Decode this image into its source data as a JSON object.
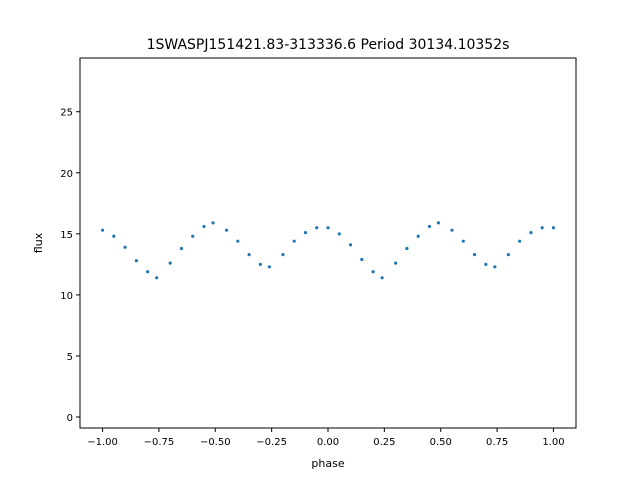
{
  "chart_data": {
    "type": "scatter",
    "title": "1SWASPJ151421.83-313336.6 Period 30134.10352s",
    "xlabel": "phase",
    "ylabel": "flux",
    "xlim": [
      -1.1,
      1.1
    ],
    "ylim": [
      -0.9,
      29.4
    ],
    "x_ticks": [
      -1.0,
      -0.75,
      -0.5,
      -0.25,
      0.0,
      0.25,
      0.5,
      0.75,
      1.0
    ],
    "x_tick_labels": [
      "−1.00",
      "−0.75",
      "−0.50",
      "−0.25",
      "0.00",
      "0.25",
      "0.50",
      "0.75",
      "1.00"
    ],
    "y_ticks": [
      0,
      5,
      10,
      15,
      20,
      25
    ],
    "y_tick_labels": [
      "0",
      "5",
      "10",
      "15",
      "20",
      "25"
    ],
    "grid": false,
    "marker_color": "#1f77b4",
    "series": [
      {
        "x": [
          -1.0,
          -0.95,
          -0.9,
          -0.85,
          -0.8,
          -0.76,
          -0.7,
          -0.65,
          -0.6,
          -0.55,
          -0.51,
          -0.45,
          -0.4,
          -0.35,
          -0.3,
          -0.26,
          -0.2,
          -0.15,
          -0.1,
          -0.05,
          0.0,
          0.05,
          0.1,
          0.15,
          0.2,
          0.24,
          0.3,
          0.35,
          0.4,
          0.45,
          0.49,
          0.55,
          0.6,
          0.65,
          0.7,
          0.74,
          0.8,
          0.85,
          0.9,
          0.95,
          1.0
        ],
        "y": [
          15.3,
          14.8,
          13.9,
          12.8,
          11.9,
          11.4,
          12.6,
          13.8,
          14.8,
          15.6,
          15.9,
          15.3,
          14.4,
          13.3,
          12.5,
          12.3,
          13.3,
          14.4,
          15.1,
          15.5,
          15.5,
          15.0,
          14.1,
          12.9,
          11.9,
          11.4,
          12.6,
          13.8,
          14.8,
          15.6,
          15.9,
          15.3,
          14.4,
          13.3,
          12.5,
          12.3,
          13.3,
          14.4,
          15.1,
          15.5,
          15.5
        ]
      }
    ]
  }
}
